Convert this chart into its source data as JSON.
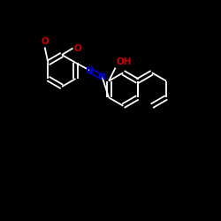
{
  "background_color": "#000000",
  "line_color": "#ffffff",
  "N_color": "#0000cd",
  "O_color": "#cc0000",
  "bond_lw": 1.3,
  "double_sep": 0.1,
  "font_size": 7.5,
  "xlim": [
    0,
    10
  ],
  "ylim": [
    0,
    10
  ],
  "hex_r": 0.72
}
